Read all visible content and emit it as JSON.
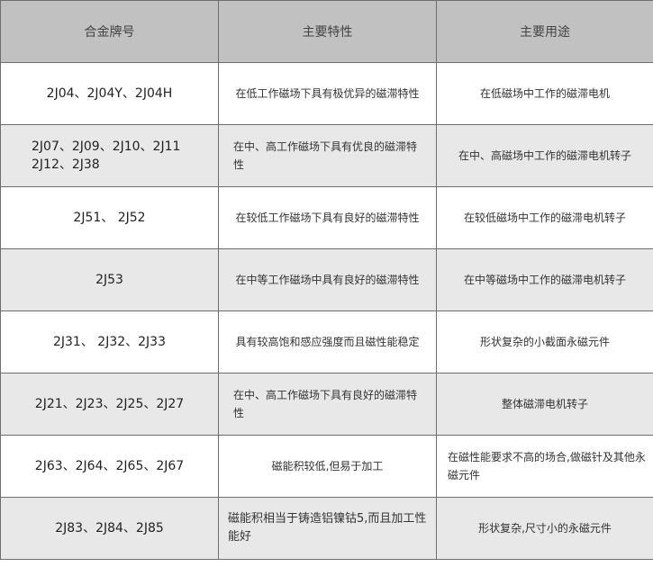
{
  "headers": [
    "合金牌号",
    "主要特性",
    "主要用途"
  ],
  "rows": [
    {
      "grade": "2J04、2J04Y、2J04H",
      "property": "在低工作磁场下具有极优异的磁滞特性",
      "use": "在低磁场中工作的磁滞电机"
    },
    {
      "grade": "2J07、2J09、2J10、2J11 2J12、2J38",
      "property": "在中、高工作磁场下具有优良的磁滞特性",
      "use": "在中、高磁场中工作的磁滞电机转子"
    },
    {
      "grade": "2J51、 2J52",
      "property": "在较低工作磁场下具有良好的磁滞特性",
      "use": "在较低磁场中工作的磁滞电机转子"
    },
    {
      "grade": "2J53",
      "property": "在中等工作磁场中具有良好的磁滞特性",
      "use": "在中等磁场中工作的磁滞电机转子"
    },
    {
      "grade": "2J31、 2J32、2J33",
      "property": "具有较高饱和感应强度而且磁性能稳定",
      "use": "形状复杂的小截面永磁元件"
    },
    {
      "grade": "2J21、2J23、2J25、2J27",
      "property": "在中、高工作磁场下具有良好的磁滞特性",
      "use": "整体磁滞电机转子"
    },
    {
      "grade": "2J63、2J64、2J65、2J67",
      "property": "磁能积较低,但易于加工",
      "use": "在磁性能要求不高的场合,做磁针及其他永磁元件"
    },
    {
      "grade": "2J83、2J84、2J85",
      "property": "磁能积相当于铸造铝镍钴5,而且加工性能好",
      "use": "形状复杂,尺寸小的永磁元件"
    }
  ]
}
